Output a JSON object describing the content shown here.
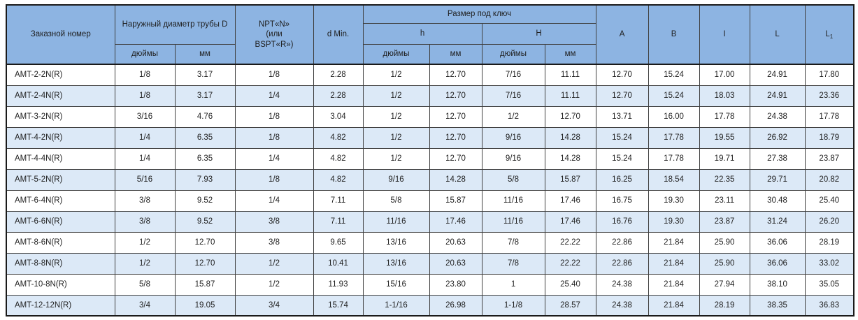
{
  "table": {
    "colors": {
      "header_bg": "#8db4e2",
      "stripe_bg": "#dce9f7",
      "border": "#3f3f3f",
      "text": "#1f1f1f"
    },
    "header": {
      "order_number": "Заказной номер",
      "outer_diameter_group": "Наружный диаметр трубы D",
      "npt": "NPT«N»\n(или\nBSPT«R»)",
      "d_min": "d Min.",
      "wrench_size_group": "Размер под ключ",
      "h_group": "h",
      "H_group": "H",
      "inches": "дюймы",
      "mm": "мм",
      "col_A": "A",
      "col_B": "B",
      "col_I": "I",
      "col_L": "L",
      "col_L1_base": "L",
      "col_L1_sub": "1"
    },
    "rows": [
      [
        "AMT-2-2N(R)",
        "1/8",
        "3.17",
        "1/8",
        "2.28",
        "1/2",
        "12.70",
        "7/16",
        "11.11",
        "12.70",
        "15.24",
        "17.00",
        "24.91",
        "17.80"
      ],
      [
        "AMT-2-4N(R)",
        "1/8",
        "3.17",
        "1/4",
        "2.28",
        "1/2",
        "12.70",
        "7/16",
        "11.11",
        "12.70",
        "15.24",
        "18.03",
        "24.91",
        "23.36"
      ],
      [
        "AMT-3-2N(R)",
        "3/16",
        "4.76",
        "1/8",
        "3.04",
        "1/2",
        "12.70",
        "1/2",
        "12.70",
        "13.71",
        "16.00",
        "17.78",
        "24.38",
        "17.78"
      ],
      [
        "AMT-4-2N(R)",
        "1/4",
        "6.35",
        "1/8",
        "4.82",
        "1/2",
        "12.70",
        "9/16",
        "14.28",
        "15.24",
        "17.78",
        "19.55",
        "26.92",
        "18.79"
      ],
      [
        "AMT-4-4N(R)",
        "1/4",
        "6.35",
        "1/4",
        "4.82",
        "1/2",
        "12.70",
        "9/16",
        "14.28",
        "15.24",
        "17.78",
        "19.71",
        "27.38",
        "23.87"
      ],
      [
        "AMT-5-2N(R)",
        "5/16",
        "7.93",
        "1/8",
        "4.82",
        "9/16",
        "14.28",
        "5/8",
        "15.87",
        "16.25",
        "18.54",
        "22.35",
        "29.71",
        "20.82"
      ],
      [
        "AMT-6-4N(R)",
        "3/8",
        "9.52",
        "1/4",
        "7.11",
        "5/8",
        "15.87",
        "11/16",
        "17.46",
        "16.75",
        "19.30",
        "23.11",
        "30.48",
        "25.40"
      ],
      [
        "AMT-6-6N(R)",
        "3/8",
        "9.52",
        "3/8",
        "7.11",
        "11/16",
        "17.46",
        "11/16",
        "17.46",
        "16.76",
        "19.30",
        "23.87",
        "31.24",
        "26.20"
      ],
      [
        "AMT-8-6N(R)",
        "1/2",
        "12.70",
        "3/8",
        "9.65",
        "13/16",
        "20.63",
        "7/8",
        "22.22",
        "22.86",
        "21.84",
        "25.90",
        "36.06",
        "28.19"
      ],
      [
        "AMT-8-8N(R)",
        "1/2",
        "12.70",
        "1/2",
        "10.41",
        "13/16",
        "20.63",
        "7/8",
        "22.22",
        "22.86",
        "21.84",
        "25.90",
        "36.06",
        "33.02"
      ],
      [
        "AMT-10-8N(R)",
        "5/8",
        "15.87",
        "1/2",
        "11.93",
        "15/16",
        "23.80",
        "1",
        "25.40",
        "24.38",
        "21.84",
        "27.94",
        "38.10",
        "35.05"
      ],
      [
        "AMT-12-12N(R)",
        "3/4",
        "19.05",
        "3/4",
        "15.74",
        "1-1/16",
        "26.98",
        "1-1/8",
        "28.57",
        "24.38",
        "21.84",
        "28.19",
        "38.35",
        "36.83"
      ]
    ]
  }
}
